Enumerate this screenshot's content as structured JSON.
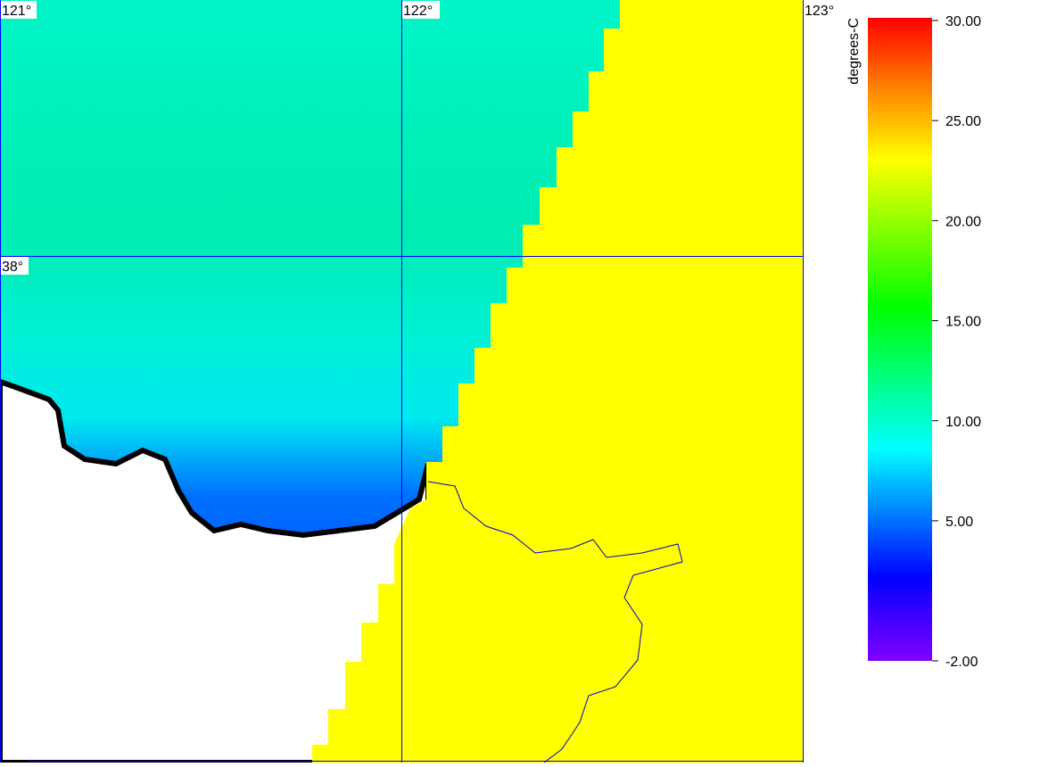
{
  "map": {
    "lon_labels": [
      "121°",
      "122°",
      "123°"
    ],
    "lat_labels": [
      "38°"
    ],
    "colorbar": {
      "label": "degrees-C",
      "lim": [
        -2,
        30
      ],
      "ticks": [
        {
          "value": 30,
          "label": "30.00"
        },
        {
          "value": 25,
          "label": "25.00"
        },
        {
          "value": 20,
          "label": "20.00"
        },
        {
          "value": 15,
          "label": "15.00"
        },
        {
          "value": 10,
          "label": "10.00"
        },
        {
          "value": 5,
          "label": "5.00"
        },
        {
          "value": -2,
          "label": "-2.00"
        }
      ]
    }
  }
}
